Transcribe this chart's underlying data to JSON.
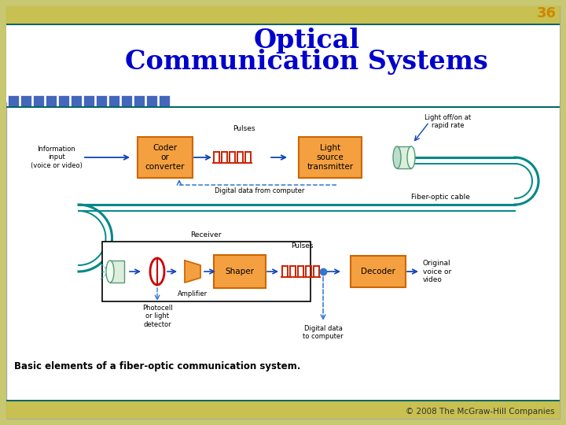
{
  "title_line1": "Optical",
  "title_line2": "Communication Systems",
  "slide_number": "36",
  "caption": "Basic elements of a fiber-optic communication system.",
  "copyright": "© 2008 The McGraw-Hill Companies",
  "title_color": "#0000CC",
  "slide_num_color": "#CC8800",
  "caption_color": "#000000",
  "copyright_color": "#333333",
  "box_fill": "#F4A040",
  "box_edge": "#CC6600",
  "arrow_color": "#1144BB",
  "fiber_color": "#008888",
  "pulse_color": "#CC2200",
  "dashed_color": "#3377CC",
  "header_blue_color": "#4466BB",
  "header_gold_color": "#C8C050",
  "header_teal_color": "#006666",
  "background_color": "#FFFFFF",
  "outer_bg": "#C8C870",
  "slide_bg": "#FFFFFF",
  "border_color": "#AABBAA"
}
